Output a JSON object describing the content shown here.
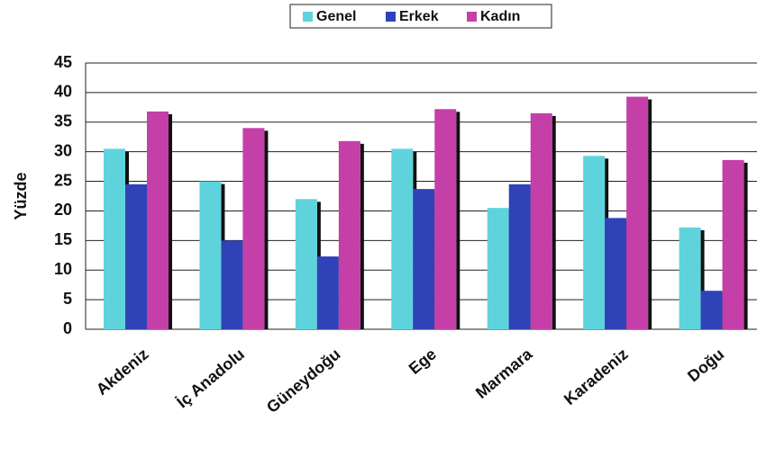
{
  "chart_data": {
    "type": "bar",
    "categories": [
      "Akdeniz",
      "İç Anadolu",
      "Güneydoğu",
      "Ege",
      "Marmara",
      "Karadeniz",
      "Doğu"
    ],
    "series": [
      {
        "name": "Genel",
        "color": "#5fd3dc",
        "values": [
          30.5,
          25,
          22,
          30.5,
          20.5,
          29.3,
          17.2
        ]
      },
      {
        "name": "Erkek",
        "color": "#3042b8",
        "values": [
          24.5,
          15,
          12.3,
          23.7,
          24.5,
          18.8,
          6.5
        ]
      },
      {
        "name": "Kadın",
        "color": "#c43fa8",
        "values": [
          36.8,
          34,
          31.8,
          37.2,
          36.5,
          39.3,
          28.6
        ]
      }
    ],
    "ylabel": "Yüzde",
    "ylim": [
      0,
      45
    ],
    "yticks": [
      0,
      5,
      10,
      15,
      20,
      25,
      30,
      35,
      40,
      45
    ],
    "grid": true,
    "legend": "top"
  }
}
